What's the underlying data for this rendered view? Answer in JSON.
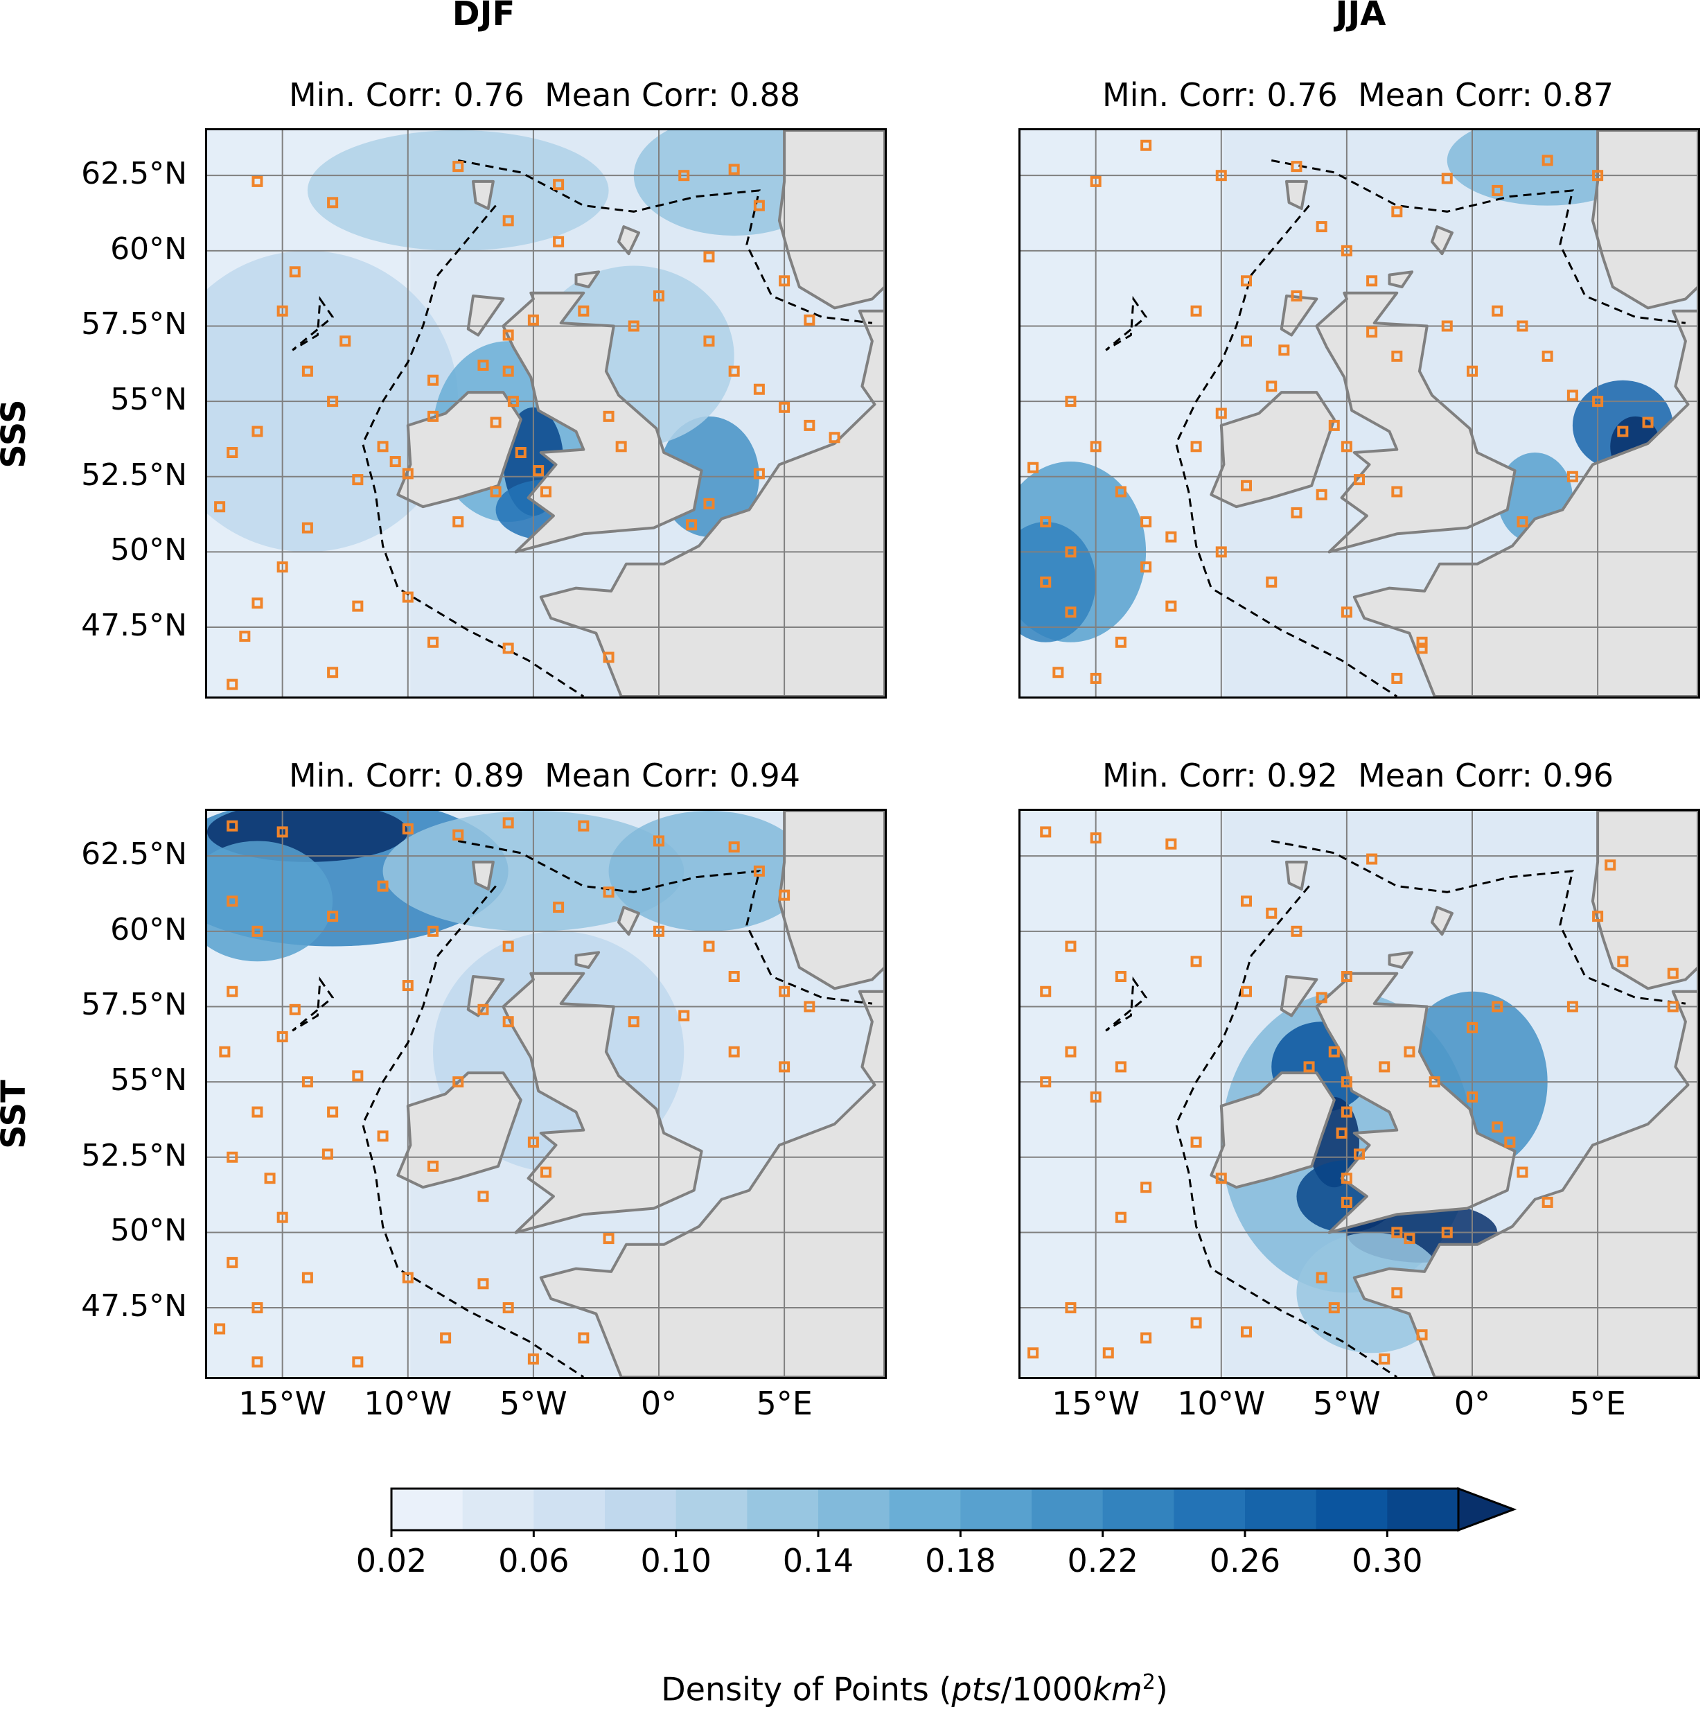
{
  "columns": [
    "DJF",
    "JJA"
  ],
  "rows": [
    "SSS",
    "SST"
  ],
  "panels": [
    {
      "id": "sss-djf",
      "min_corr": "Min. Corr: 0.76",
      "mean_corr": "Mean Corr: 0.88"
    },
    {
      "id": "sss-jja",
      "min_corr": "Min. Corr: 0.76",
      "mean_corr": "Mean Corr: 0.87"
    },
    {
      "id": "sst-djf",
      "min_corr": "Min. Corr: 0.89",
      "mean_corr": "Mean Corr: 0.94"
    },
    {
      "id": "sst-jja",
      "min_corr": "Min. Corr: 0.92",
      "mean_corr": "Mean Corr: 0.96"
    }
  ],
  "lat_ticks": [
    "62.5°N",
    "60°N",
    "57.5°N",
    "55°N",
    "52.5°N",
    "50°N",
    "47.5°N"
  ],
  "lon_ticks": [
    "15°W",
    "10°W",
    "5°W",
    "0°",
    "5°E"
  ],
  "lat_values": [
    62.5,
    60,
    57.5,
    55,
    52.5,
    50,
    47.5
  ],
  "lon_values": [
    -15,
    -10,
    -5,
    0,
    5
  ],
  "map_extent": {
    "lon": [
      -18,
      9
    ],
    "lat": [
      45.2,
      64
    ]
  },
  "colorbar": {
    "ticks": [
      "0.02",
      "0.06",
      "0.10",
      "0.14",
      "0.18",
      "0.22",
      "0.26",
      "0.30"
    ],
    "levels": [
      0.02,
      0.04,
      0.06,
      0.08,
      0.1,
      0.12,
      0.14,
      0.16,
      0.18,
      0.2,
      0.22,
      0.24,
      0.26,
      0.28,
      0.3,
      0.32
    ],
    "extend": "max",
    "colors": [
      "#eaf1fa",
      "#dde9f5",
      "#d0e1f2",
      "#c0d8ed",
      "#afd1e7",
      "#98c6e1",
      "#82badb",
      "#6aaed6",
      "#58a1cf",
      "#4592c6",
      "#3383be",
      "#2373b6",
      "#1664aa",
      "#0b559f",
      "#08468b",
      "#08306b"
    ],
    "label_prefix": "Density of Points (",
    "label_italic": "pts",
    "label_mid": "/1000",
    "label_italic2": "km",
    "label_sup": "2",
    "label_suffix": ")"
  },
  "colors": {
    "marker": "#f0842a",
    "land": "#e3e3e3",
    "coast": "#808080",
    "grid": "#808080",
    "shelf_edge": "#000000"
  }
}
